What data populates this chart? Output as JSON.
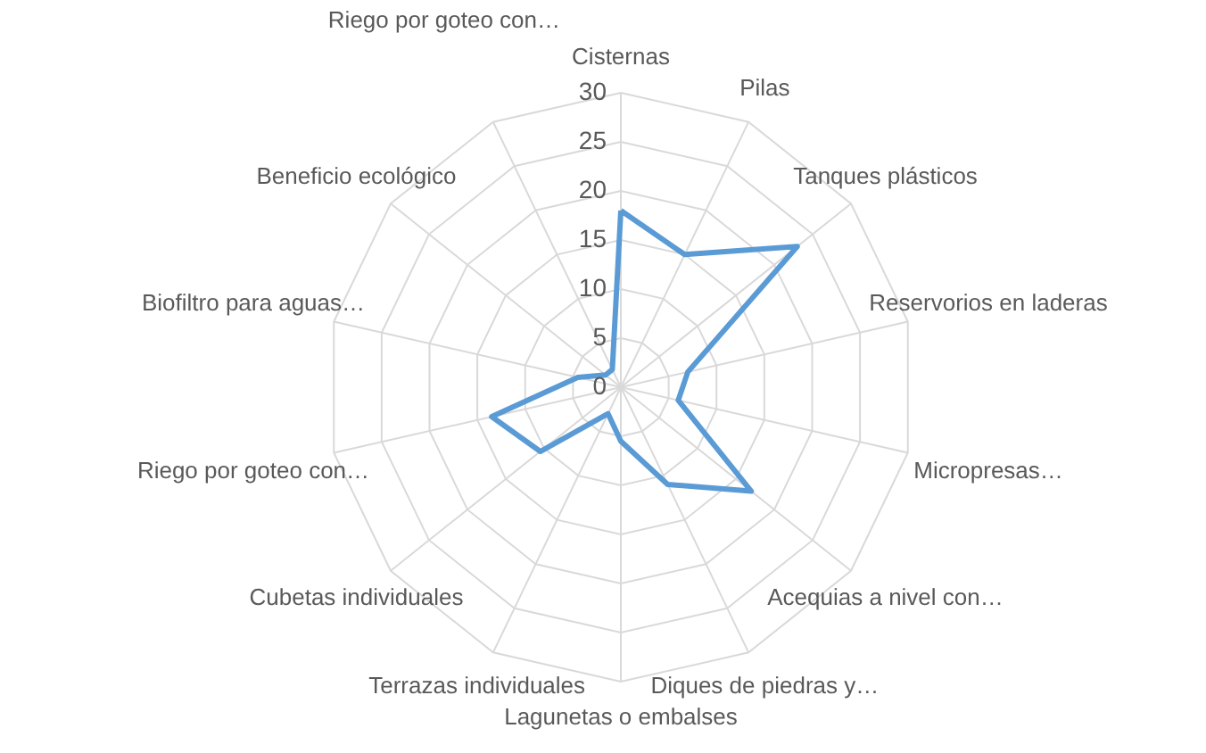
{
  "chart_data": {
    "type": "radar",
    "categories": [
      "Cisternas",
      "Pilas",
      "Tanques plásticos",
      "Reservorios en laderas",
      "Micropresas…",
      "Acequias a nivel con…",
      "Diques de piedras y…",
      "Lagunetas o embalses",
      "Terrazas individuales",
      "Cubetas individuales",
      "Riego por goteo con…",
      "Biofiltro para aguas…",
      "Beneficio ecológico",
      "Riego por goteo con…"
    ],
    "series": [
      {
        "color": "#5b9bd5",
        "values": [
          18,
          15,
          23,
          7,
          6,
          17,
          11,
          5.5,
          3,
          10.5,
          13.5,
          4.5,
          2,
          2
        ]
      }
    ],
    "ylim": [
      0,
      30
    ],
    "yticks": [
      0,
      5,
      10,
      15,
      20,
      25,
      30
    ],
    "grid": true
  }
}
